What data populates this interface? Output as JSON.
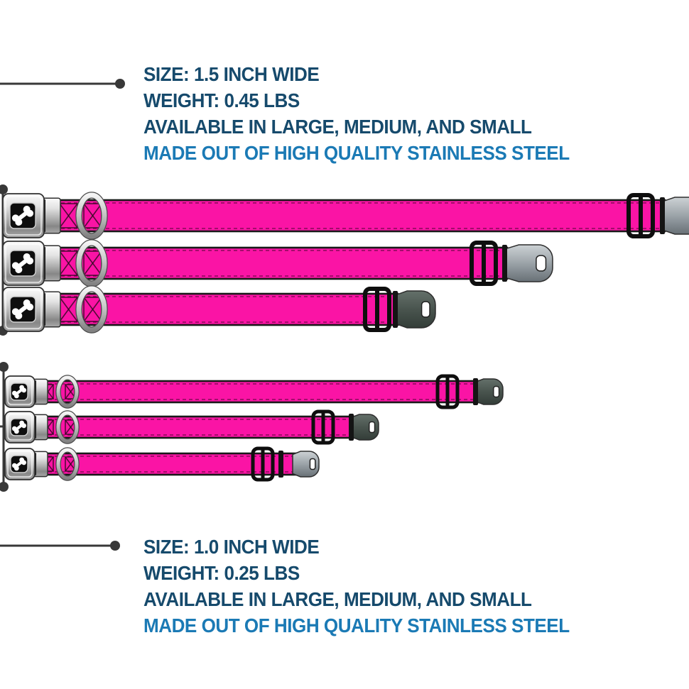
{
  "annotations": {
    "top": {
      "size": "SIZE: 1.5 INCH WIDE",
      "weight": "WEIGHT: 0.45 LBS",
      "availability": "AVAILABLE IN LARGE, MEDIUM, AND SMALL",
      "material": "MADE OUT OF HIGH QUALITY STAINLESS STEEL"
    },
    "bottom": {
      "size": "SIZE: 1.0 INCH WIDE",
      "weight": "WEIGHT: 0.25 LBS",
      "availability": "AVAILABLE IN LARGE, MEDIUM, AND SMALL",
      "material": "MADE OUT OF HIGH QUALITY STAINLESS STEEL"
    }
  },
  "colors": {
    "heading_navy": "#164a6c",
    "highlight_blue": "#1b7ab5",
    "collar_pink": "#fa14a5",
    "strap_edge": "#191919",
    "hardware_black": "#0e0e0e",
    "callout_line": "#383838",
    "background": "#ffffff"
  },
  "product": {
    "item": "seatbelt-buckle dog collars",
    "logo": "dog-bone",
    "collar_groups": [
      {
        "width_inches": "1.5",
        "weight_lbs": "0.45",
        "sizes": [
          "large",
          "medium",
          "small"
        ]
      },
      {
        "width_inches": "1.0",
        "weight_lbs": "0.25",
        "sizes": [
          "large",
          "medium",
          "small"
        ]
      }
    ]
  }
}
